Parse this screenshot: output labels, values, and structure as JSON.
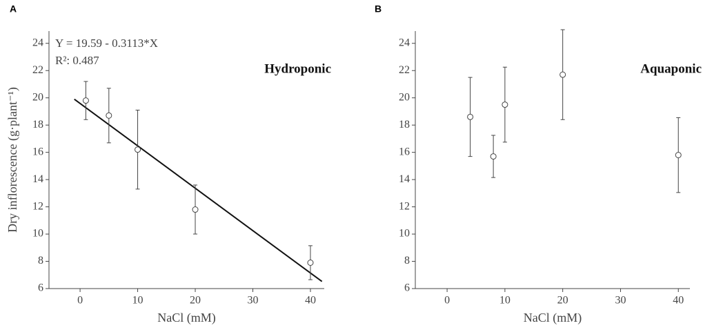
{
  "chart_data": [
    {
      "type": "scatter",
      "panel_label": "A",
      "xlabel": "NaCl (mM)",
      "ylabel": "Dry inflorescence  (g·plant⁻¹)",
      "annotation": "Hydroponic",
      "equation": "Y = 19.59 - 0.3113*X",
      "r2": "R²: 0.487",
      "x": [
        1,
        5,
        10,
        20,
        40
      ],
      "y": [
        19.8,
        18.7,
        16.2,
        11.8,
        7.9
      ],
      "err": [
        1.4,
        2.0,
        2.9,
        1.8,
        1.25
      ],
      "fit": {
        "x": [
          -1,
          42
        ],
        "y": [
          19.9,
          6.52
        ]
      },
      "color": "#444444",
      "xlim": [
        -5.4,
        42.4
      ],
      "ylim": [
        6,
        24.9
      ],
      "xticks": [
        0,
        10,
        20,
        30,
        40
      ],
      "yticks": [
        6,
        8,
        10,
        12,
        14,
        16,
        18,
        20,
        22,
        24
      ]
    },
    {
      "type": "scatter",
      "panel_label": "B",
      "xlabel": "NaCl (mM)",
      "annotation": "Aquaponic",
      "x": [
        4,
        8,
        10,
        20,
        40
      ],
      "y": [
        18.6,
        15.7,
        19.5,
        21.7,
        15.8
      ],
      "err": [
        2.9,
        1.55,
        2.75,
        3.3,
        2.75
      ],
      "color": "#444444",
      "xlim": [
        -5.5,
        42
      ],
      "ylim": [
        6,
        24.9
      ],
      "xticks": [
        0,
        10,
        20,
        30,
        40
      ],
      "yticks": [
        6,
        8,
        10,
        12,
        14,
        16,
        18,
        20,
        22,
        24
      ]
    }
  ]
}
